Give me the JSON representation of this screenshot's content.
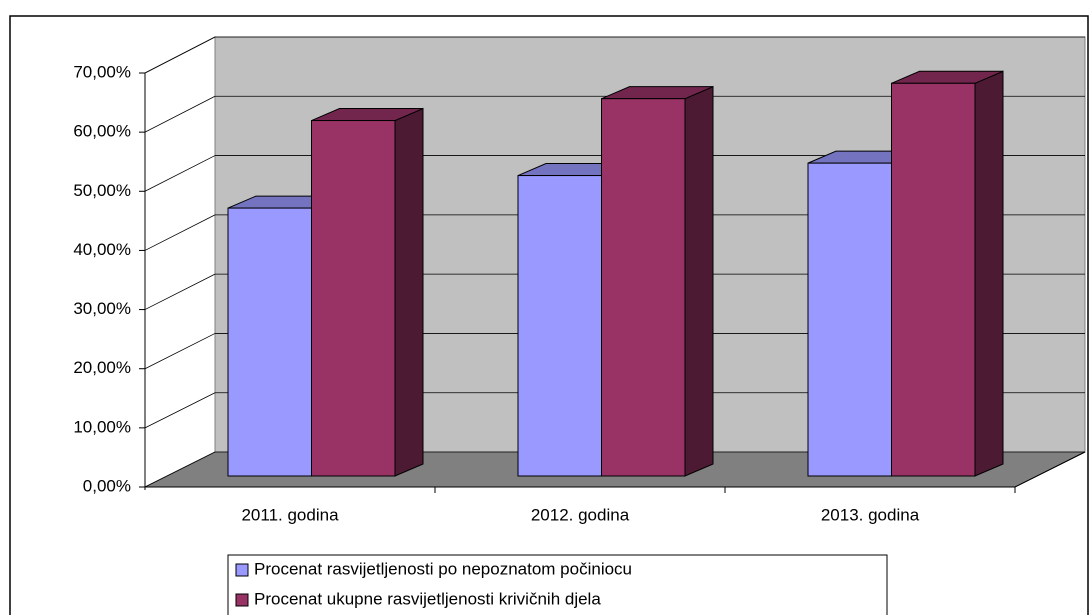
{
  "chart_data": {
    "type": "bar3d",
    "categories": [
      "2011. godina",
      "2012. godina",
      "2013. godina"
    ],
    "series": [
      {
        "name": "Procenat rasvijetljenosti po nepoznatom počiniocu",
        "color": "#9999ff",
        "values": [
          45.3,
          50.8,
          52.9
        ]
      },
      {
        "name": "Procenat ukupne rasvijetljenosti krivičnih djela",
        "color": "#993366",
        "values": [
          60.1,
          63.8,
          66.4
        ]
      }
    ],
    "ylim": [
      0,
      70
    ],
    "yticks": [
      {
        "value": 0,
        "label": "0,00%"
      },
      {
        "value": 10,
        "label": "10,00%"
      },
      {
        "value": 20,
        "label": "20,00%"
      },
      {
        "value": 30,
        "label": "30,00%"
      },
      {
        "value": 40,
        "label": "40,00%"
      },
      {
        "value": 50,
        "label": "50,00%"
      },
      {
        "value": 60,
        "label": "60,00%"
      },
      {
        "value": 70,
        "label": "70,00%"
      }
    ],
    "grid": true
  }
}
